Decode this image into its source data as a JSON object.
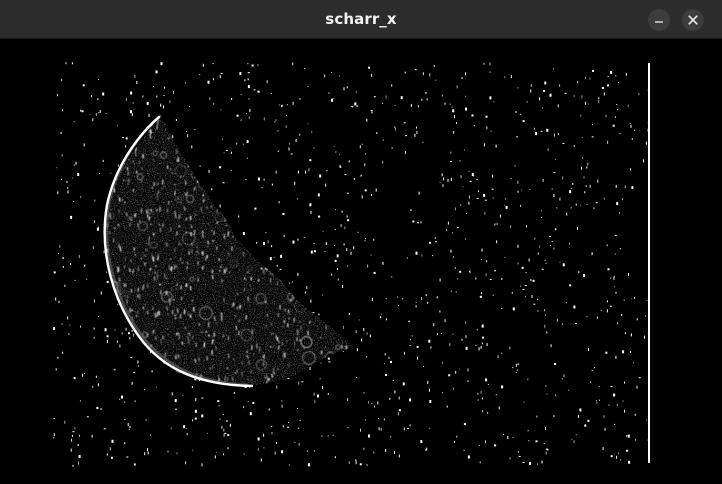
{
  "window": {
    "title": "scharr_x"
  },
  "controls": {
    "minimize_icon": "minimize-icon",
    "close_icon": "close-icon"
  },
  "image": {
    "subject": "moon",
    "filter": "scharr_x"
  },
  "colors": {
    "titlebar_bg": "#2c2c2c",
    "title_text": "#f2f2f2",
    "button_bg": "#3d3d3d",
    "button_icon": "#eeeeee",
    "canvas_bg": "#000000",
    "edge": "#ffffff"
  }
}
